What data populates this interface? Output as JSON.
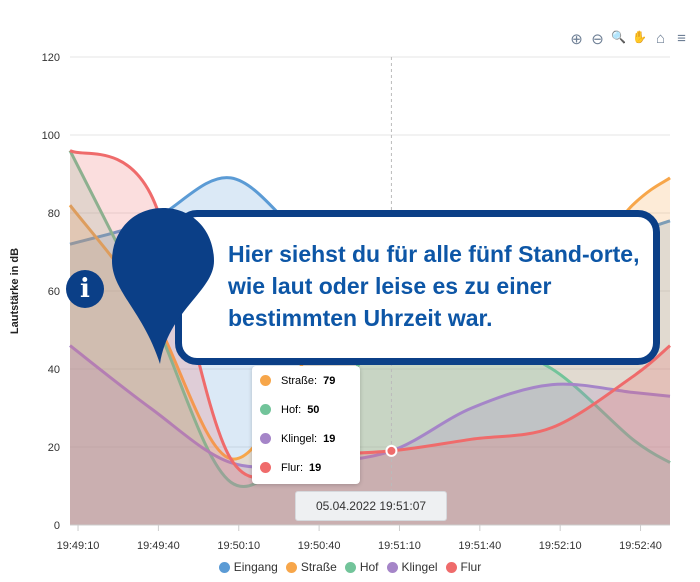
{
  "toolbar": {
    "zoom_in": "⊕",
    "zoom_out": "⊖",
    "zoom_select": "🔍",
    "pan": "✋",
    "home": "⌂",
    "menu": "≡"
  },
  "chart_data": {
    "type": "area",
    "ylabel": "Lautstärke in dB",
    "ylim": [
      0,
      120
    ],
    "yticks": [
      0,
      20,
      40,
      60,
      80,
      100,
      120
    ],
    "xlim_seconds": [
      0,
      224
    ],
    "x_seconds": [
      0,
      30,
      60,
      90,
      120,
      150,
      180,
      210,
      224
    ],
    "xtick_labels": [
      "19:49:10",
      "19:49:40",
      "19:50:10",
      "19:50:40",
      "19:51:10",
      "19:51:40",
      "19:52:10",
      "19:52:40"
    ],
    "xtick_seconds": [
      3,
      33,
      63,
      93,
      123,
      153,
      183,
      213
    ],
    "series": [
      {
        "name": "Eingang",
        "color": "#5b9bd5",
        "values": [
          72,
          78,
          89,
          72,
          60,
          62,
          70,
          75,
          78
        ]
      },
      {
        "name": "Straße",
        "color": "#f7a64a",
        "values": [
          82,
          55,
          17,
          45,
          79,
          70,
          60,
          82,
          89
        ]
      },
      {
        "name": "Hof",
        "color": "#72c49a",
        "values": [
          96,
          55,
          11,
          25,
          50,
          48,
          40,
          22,
          16
        ]
      },
      {
        "name": "Klingel",
        "color": "#a585c8",
        "values": [
          46,
          30,
          16,
          16,
          19,
          30,
          36,
          34,
          33
        ]
      },
      {
        "name": "Flur",
        "color": "#ef6b6b",
        "values": [
          96,
          85,
          17,
          18,
          19,
          22,
          25,
          38,
          46
        ]
      }
    ],
    "hover_seconds": 120,
    "hover_value": 19
  },
  "tooltip": {
    "header": "05.04.2022 19:51:07",
    "items": [
      {
        "label": "Straße:",
        "value": "79",
        "color": "#f7a64a"
      },
      {
        "label": "Hof:",
        "value": "50",
        "color": "#72c49a"
      },
      {
        "label": "Klingel:",
        "value": "19",
        "color": "#a585c8"
      },
      {
        "label": "Flur:",
        "value": "19",
        "color": "#ef6b6b"
      }
    ]
  },
  "legend": [
    "Eingang",
    "Straße",
    "Hof",
    "Klingel",
    "Flur"
  ],
  "callout": {
    "icon": "i",
    "text": "Hier siehst du für alle fünf Stand-orte, wie laut oder leise es zu einer bestimmten Uhrzeit war."
  }
}
